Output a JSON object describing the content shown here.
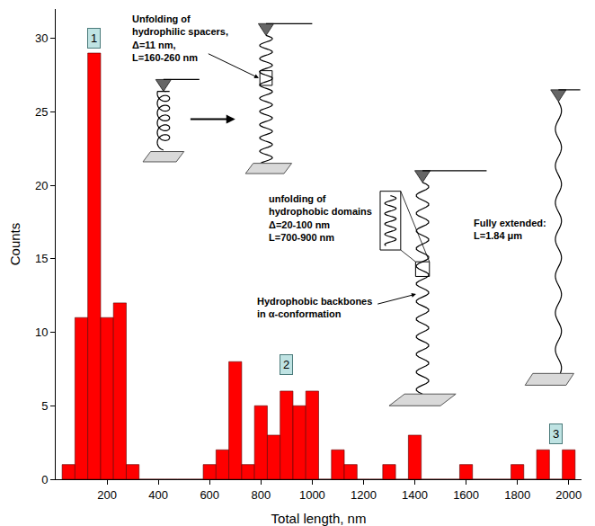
{
  "chart_data": {
    "type": "histogram",
    "bins": [
      25,
      75,
      125,
      175,
      225,
      275,
      325,
      375,
      425,
      475,
      525,
      575,
      625,
      675,
      725,
      775,
      825,
      875,
      925,
      975,
      1025,
      1075,
      1125,
      1175,
      1225,
      1275,
      1325,
      1375,
      1425,
      1475,
      1525,
      1575,
      1625,
      1675,
      1725,
      1775,
      1825,
      1875,
      1925,
      1975,
      2025
    ],
    "counts": [
      1,
      11,
      29,
      11,
      12,
      1,
      0,
      0,
      0,
      0,
      0,
      1,
      2,
      8,
      1,
      5,
      3,
      6,
      5,
      6,
      0,
      2,
      1,
      0,
      0,
      1,
      0,
      3,
      0,
      0,
      0,
      1,
      0,
      0,
      0,
      1,
      0,
      2,
      0,
      2
    ],
    "color": "#ff0000",
    "xlabel": "Total length, nm",
    "ylabel": "Counts",
    "xlim": [
      0,
      2050
    ],
    "ylim": [
      0,
      32
    ],
    "xticks": [
      200,
      400,
      600,
      800,
      1000,
      1200,
      1400,
      1600,
      1800,
      2000
    ],
    "yticks": [
      0,
      5,
      10,
      15,
      20,
      25,
      30
    ],
    "grid": false,
    "annotations": [
      {
        "lines": [
          "Unfolding of",
          "hydrophilic spacers,",
          "Δ=11 nm,",
          "L=160-260 nm"
        ]
      },
      {
        "lines": [
          "unfolding of",
          "hydrophobic domains",
          "Δ=20-100 nm",
          "L=700-900 nm"
        ]
      },
      {
        "lines": [
          "Hydrophobic backbones",
          "in α-conformation"
        ]
      },
      {
        "lines": [
          "Fully extended:",
          "L=1.84 μm"
        ]
      }
    ],
    "peak_labels": [
      "1",
      "2",
      "3"
    ]
  }
}
